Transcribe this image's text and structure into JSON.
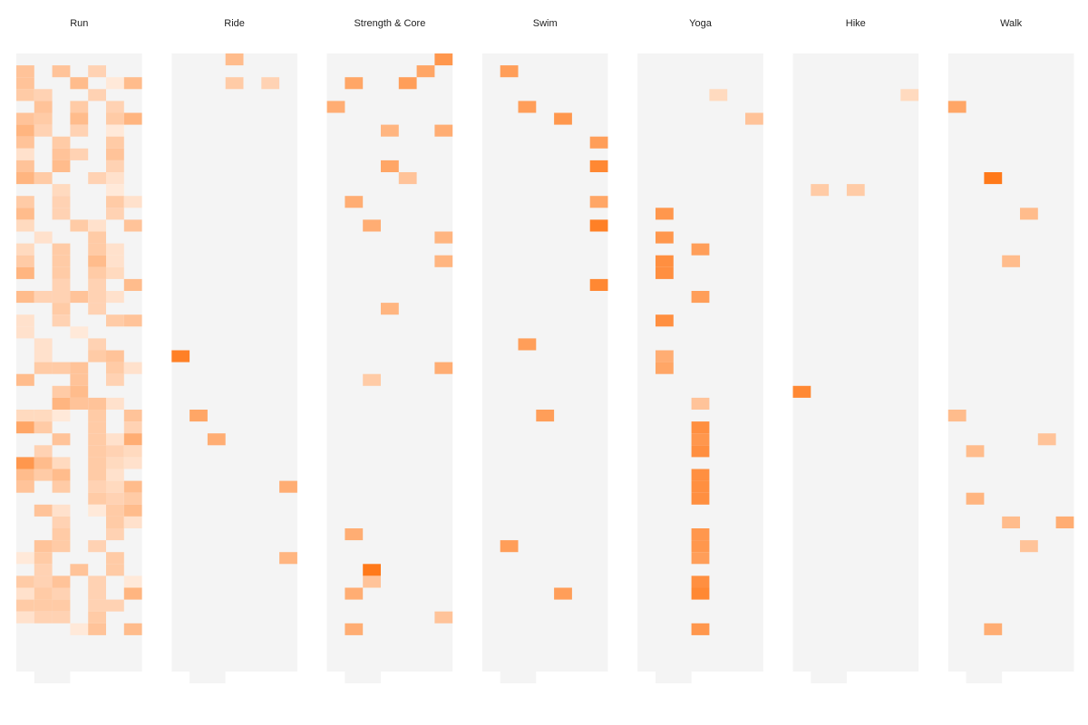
{
  "chart_data": {
    "type": "heatmap",
    "panels": [
      {
        "title": "Run",
        "cells": [
          [
            0,
            1,
            0.4
          ],
          [
            2,
            1,
            0.4
          ],
          [
            4,
            1,
            0.3
          ],
          [
            0,
            2,
            0.4
          ],
          [
            3,
            2,
            0.45
          ],
          [
            5,
            2,
            0.15
          ],
          [
            6,
            2,
            0.45
          ],
          [
            0,
            3,
            0.35
          ],
          [
            1,
            3,
            0.3
          ],
          [
            4,
            3,
            0.3
          ],
          [
            1,
            4,
            0.4
          ],
          [
            3,
            4,
            0.35
          ],
          [
            5,
            4,
            0.3
          ],
          [
            0,
            5,
            0.4
          ],
          [
            1,
            5,
            0.35
          ],
          [
            3,
            5,
            0.45
          ],
          [
            5,
            5,
            0.35
          ],
          [
            6,
            5,
            0.5
          ],
          [
            0,
            6,
            0.5
          ],
          [
            1,
            6,
            0.3
          ],
          [
            3,
            6,
            0.3
          ],
          [
            5,
            6,
            0.15
          ],
          [
            0,
            7,
            0.4
          ],
          [
            2,
            7,
            0.35
          ],
          [
            5,
            7,
            0.35
          ],
          [
            0,
            8,
            0.2
          ],
          [
            2,
            8,
            0.4
          ],
          [
            3,
            8,
            0.3
          ],
          [
            5,
            8,
            0.4
          ],
          [
            0,
            9,
            0.4
          ],
          [
            2,
            9,
            0.45
          ],
          [
            5,
            9,
            0.3
          ],
          [
            0,
            10,
            0.5
          ],
          [
            1,
            10,
            0.35
          ],
          [
            4,
            10,
            0.3
          ],
          [
            5,
            10,
            0.2
          ],
          [
            2,
            11,
            0.25
          ],
          [
            5,
            11,
            0.15
          ],
          [
            0,
            12,
            0.35
          ],
          [
            2,
            12,
            0.3
          ],
          [
            5,
            12,
            0.35
          ],
          [
            6,
            12,
            0.2
          ],
          [
            0,
            13,
            0.45
          ],
          [
            2,
            13,
            0.3
          ],
          [
            5,
            13,
            0.3
          ],
          [
            0,
            14,
            0.25
          ],
          [
            3,
            14,
            0.35
          ],
          [
            4,
            14,
            0.2
          ],
          [
            6,
            14,
            0.4
          ],
          [
            1,
            15,
            0.2
          ],
          [
            4,
            15,
            0.35
          ],
          [
            0,
            16,
            0.25
          ],
          [
            2,
            16,
            0.35
          ],
          [
            4,
            16,
            0.35
          ],
          [
            5,
            16,
            0.2
          ],
          [
            0,
            17,
            0.35
          ],
          [
            2,
            17,
            0.35
          ],
          [
            4,
            17,
            0.45
          ],
          [
            5,
            17,
            0.2
          ],
          [
            0,
            18,
            0.5
          ],
          [
            2,
            18,
            0.35
          ],
          [
            4,
            18,
            0.35
          ],
          [
            5,
            18,
            0.25
          ],
          [
            2,
            19,
            0.3
          ],
          [
            4,
            19,
            0.3
          ],
          [
            6,
            19,
            0.45
          ],
          [
            0,
            20,
            0.45
          ],
          [
            1,
            20,
            0.3
          ],
          [
            2,
            20,
            0.3
          ],
          [
            3,
            20,
            0.4
          ],
          [
            4,
            20,
            0.3
          ],
          [
            5,
            20,
            0.2
          ],
          [
            2,
            21,
            0.35
          ],
          [
            4,
            21,
            0.3
          ],
          [
            0,
            22,
            0.2
          ],
          [
            2,
            22,
            0.3
          ],
          [
            5,
            22,
            0.35
          ],
          [
            6,
            22,
            0.4
          ],
          [
            0,
            23,
            0.2
          ],
          [
            3,
            23,
            0.15
          ],
          [
            1,
            24,
            0.2
          ],
          [
            4,
            24,
            0.3
          ],
          [
            1,
            25,
            0.2
          ],
          [
            4,
            25,
            0.35
          ],
          [
            5,
            25,
            0.4
          ],
          [
            1,
            26,
            0.35
          ],
          [
            2,
            26,
            0.35
          ],
          [
            3,
            26,
            0.4
          ],
          [
            5,
            26,
            0.35
          ],
          [
            6,
            26,
            0.2
          ],
          [
            0,
            27,
            0.45
          ],
          [
            3,
            27,
            0.4
          ],
          [
            5,
            27,
            0.3
          ],
          [
            2,
            28,
            0.35
          ],
          [
            3,
            28,
            0.45
          ],
          [
            2,
            29,
            0.5
          ],
          [
            3,
            29,
            0.4
          ],
          [
            4,
            29,
            0.4
          ],
          [
            5,
            29,
            0.2
          ],
          [
            0,
            30,
            0.25
          ],
          [
            1,
            30,
            0.25
          ],
          [
            2,
            30,
            0.15
          ],
          [
            4,
            30,
            0.35
          ],
          [
            6,
            30,
            0.4
          ],
          [
            0,
            31,
            0.6
          ],
          [
            1,
            31,
            0.35
          ],
          [
            4,
            31,
            0.35
          ],
          [
            6,
            31,
            0.3
          ],
          [
            2,
            32,
            0.4
          ],
          [
            4,
            32,
            0.35
          ],
          [
            5,
            32,
            0.2
          ],
          [
            6,
            32,
            0.55
          ],
          [
            1,
            33,
            0.3
          ],
          [
            4,
            33,
            0.35
          ],
          [
            5,
            33,
            0.3
          ],
          [
            6,
            33,
            0.25
          ],
          [
            0,
            34,
            0.7
          ],
          [
            1,
            34,
            0.45
          ],
          [
            2,
            34,
            0.25
          ],
          [
            4,
            34,
            0.35
          ],
          [
            5,
            34,
            0.25
          ],
          [
            6,
            34,
            0.2
          ],
          [
            0,
            35,
            0.45
          ],
          [
            1,
            35,
            0.35
          ],
          [
            2,
            35,
            0.45
          ],
          [
            4,
            35,
            0.35
          ],
          [
            5,
            35,
            0.2
          ],
          [
            0,
            36,
            0.4
          ],
          [
            2,
            36,
            0.35
          ],
          [
            4,
            36,
            0.3
          ],
          [
            5,
            36,
            0.25
          ],
          [
            6,
            36,
            0.45
          ],
          [
            4,
            37,
            0.35
          ],
          [
            5,
            37,
            0.3
          ],
          [
            6,
            37,
            0.35
          ],
          [
            1,
            38,
            0.4
          ],
          [
            2,
            38,
            0.2
          ],
          [
            4,
            38,
            0.15
          ],
          [
            5,
            38,
            0.35
          ],
          [
            6,
            38,
            0.45
          ],
          [
            2,
            39,
            0.3
          ],
          [
            5,
            39,
            0.35
          ],
          [
            6,
            39,
            0.2
          ],
          [
            2,
            40,
            0.35
          ],
          [
            5,
            40,
            0.3
          ],
          [
            1,
            41,
            0.4
          ],
          [
            2,
            41,
            0.35
          ],
          [
            4,
            41,
            0.3
          ],
          [
            0,
            42,
            0.15
          ],
          [
            1,
            42,
            0.35
          ],
          [
            5,
            42,
            0.35
          ],
          [
            1,
            43,
            0.3
          ],
          [
            3,
            43,
            0.4
          ],
          [
            5,
            43,
            0.35
          ],
          [
            0,
            44,
            0.35
          ],
          [
            1,
            44,
            0.3
          ],
          [
            2,
            44,
            0.4
          ],
          [
            4,
            44,
            0.3
          ],
          [
            6,
            44,
            0.15
          ],
          [
            0,
            45,
            0.2
          ],
          [
            1,
            45,
            0.35
          ],
          [
            2,
            45,
            0.3
          ],
          [
            4,
            45,
            0.3
          ],
          [
            6,
            45,
            0.5
          ],
          [
            0,
            46,
            0.35
          ],
          [
            1,
            46,
            0.35
          ],
          [
            2,
            46,
            0.35
          ],
          [
            4,
            46,
            0.3
          ],
          [
            5,
            46,
            0.3
          ],
          [
            0,
            47,
            0.2
          ],
          [
            1,
            47,
            0.3
          ],
          [
            2,
            47,
            0.3
          ],
          [
            4,
            47,
            0.35
          ],
          [
            3,
            48,
            0.15
          ],
          [
            4,
            48,
            0.4
          ],
          [
            6,
            48,
            0.45
          ]
        ]
      },
      {
        "title": "Ride",
        "cells": [
          [
            3,
            0,
            0.45
          ],
          [
            3,
            2,
            0.35
          ],
          [
            5,
            2,
            0.3
          ],
          [
            0,
            25,
            0.85
          ],
          [
            1,
            30,
            0.6
          ],
          [
            2,
            32,
            0.55
          ],
          [
            6,
            36,
            0.55
          ],
          [
            6,
            42,
            0.5
          ]
        ]
      },
      {
        "title": "Strength & Core",
        "cells": [
          [
            6,
            0,
            0.7
          ],
          [
            5,
            1,
            0.6
          ],
          [
            1,
            2,
            0.6
          ],
          [
            4,
            2,
            0.65
          ],
          [
            0,
            4,
            0.55
          ],
          [
            3,
            6,
            0.5
          ],
          [
            6,
            6,
            0.55
          ],
          [
            3,
            9,
            0.6
          ],
          [
            4,
            10,
            0.4
          ],
          [
            1,
            12,
            0.55
          ],
          [
            2,
            14,
            0.55
          ],
          [
            6,
            15,
            0.5
          ],
          [
            6,
            17,
            0.5
          ],
          [
            3,
            21,
            0.5
          ],
          [
            6,
            26,
            0.55
          ],
          [
            2,
            27,
            0.35
          ],
          [
            1,
            40,
            0.55
          ],
          [
            2,
            43,
            0.9
          ],
          [
            2,
            44,
            0.4
          ],
          [
            1,
            45,
            0.55
          ],
          [
            6,
            47,
            0.4
          ],
          [
            1,
            48,
            0.55
          ]
        ]
      },
      {
        "title": "Swim",
        "cells": [
          [
            1,
            1,
            0.65
          ],
          [
            2,
            4,
            0.65
          ],
          [
            4,
            5,
            0.7
          ],
          [
            6,
            7,
            0.65
          ],
          [
            6,
            9,
            0.8
          ],
          [
            6,
            12,
            0.6
          ],
          [
            6,
            14,
            0.85
          ],
          [
            6,
            19,
            0.8
          ],
          [
            2,
            24,
            0.65
          ],
          [
            3,
            30,
            0.65
          ],
          [
            1,
            41,
            0.65
          ],
          [
            4,
            45,
            0.65
          ]
        ]
      },
      {
        "title": "Yoga",
        "cells": [
          [
            4,
            3,
            0.25
          ],
          [
            6,
            5,
            0.4
          ],
          [
            1,
            13,
            0.7
          ],
          [
            1,
            15,
            0.7
          ],
          [
            3,
            16,
            0.65
          ],
          [
            1,
            17,
            0.75
          ],
          [
            1,
            18,
            0.75
          ],
          [
            3,
            20,
            0.65
          ],
          [
            1,
            22,
            0.75
          ],
          [
            1,
            25,
            0.55
          ],
          [
            1,
            26,
            0.6
          ],
          [
            3,
            29,
            0.4
          ],
          [
            3,
            31,
            0.75
          ],
          [
            3,
            32,
            0.7
          ],
          [
            3,
            33,
            0.75
          ],
          [
            3,
            35,
            0.75
          ],
          [
            3,
            36,
            0.75
          ],
          [
            3,
            37,
            0.75
          ],
          [
            3,
            40,
            0.7
          ],
          [
            3,
            41,
            0.7
          ],
          [
            3,
            42,
            0.65
          ],
          [
            3,
            44,
            0.75
          ],
          [
            3,
            45,
            0.8
          ],
          [
            3,
            48,
            0.7
          ]
        ]
      },
      {
        "title": "Hike",
        "cells": [
          [
            6,
            3,
            0.25
          ],
          [
            1,
            11,
            0.35
          ],
          [
            3,
            11,
            0.35
          ],
          [
            0,
            28,
            0.8
          ]
        ]
      },
      {
        "title": "Walk",
        "cells": [
          [
            0,
            4,
            0.6
          ],
          [
            2,
            10,
            0.9
          ],
          [
            4,
            13,
            0.45
          ],
          [
            3,
            17,
            0.45
          ],
          [
            0,
            30,
            0.45
          ],
          [
            1,
            33,
            0.45
          ],
          [
            5,
            32,
            0.4
          ],
          [
            1,
            37,
            0.5
          ],
          [
            3,
            39,
            0.45
          ],
          [
            6,
            39,
            0.55
          ],
          [
            4,
            41,
            0.4
          ],
          [
            2,
            48,
            0.55
          ]
        ]
      }
    ],
    "color_scale": {
      "low": "#ffffff",
      "high": "#ff6a00"
    },
    "empty_cell_color": "#f4f4f4",
    "grid": false,
    "legend": "none"
  }
}
